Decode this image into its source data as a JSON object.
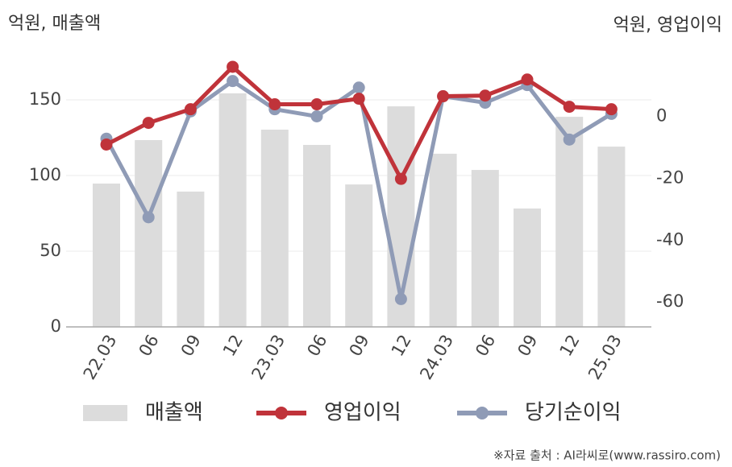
{
  "chart_data": {
    "type": "combo",
    "y_axis_label": "억원, 매출액",
    "y2_axis_label": "억원, 영업이익",
    "source": "※자료 출처 : AI라씨로(www.rassiro.com)",
    "categories": [
      "22.03",
      "06",
      "09",
      "12",
      "23.03",
      "06",
      "09",
      "12",
      "24.03",
      "06",
      "09",
      "12",
      "25.03"
    ],
    "series": [
      {
        "name": "매출액",
        "type": "bar",
        "color": "#dcdcdc",
        "values": [
          94.7,
          123.4,
          89.4,
          154.3,
          130.3,
          120.2,
          94.1,
          145.7,
          114.4,
          103.7,
          78.2,
          138.8,
          119.1
        ]
      },
      {
        "name": "영업이익",
        "type": "line",
        "axis": "y2",
        "color": "#c0333a",
        "values": [
          -9.1,
          -2.1,
          2.3,
          16.0,
          3.9,
          3.9,
          5.7,
          -20.2,
          6.5,
          6.7,
          11.9,
          3.1,
          2.3
        ]
      },
      {
        "name": "당기순이익",
        "type": "line",
        "axis": "y2",
        "color": "#8f9bb6",
        "values": [
          -7.2,
          -32.6,
          1.6,
          11.4,
          2.3,
          0,
          9.3,
          -59.0,
          6.5,
          4.4,
          10.1,
          -7.5,
          0.8
        ]
      }
    ],
    "ylim": [
      0,
      180
    ],
    "yticks": [
      0,
      50,
      100,
      150
    ],
    "y2lim": [
      -68,
      20
    ],
    "y2ticks": [
      0,
      -20,
      -40,
      -60
    ],
    "grid": true
  }
}
